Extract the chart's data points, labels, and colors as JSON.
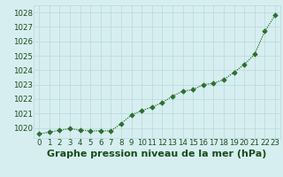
{
  "x": [
    0,
    1,
    2,
    3,
    4,
    5,
    6,
    7,
    8,
    9,
    10,
    11,
    12,
    13,
    14,
    15,
    16,
    17,
    18,
    19,
    20,
    21,
    22,
    23
  ],
  "y": [
    1019.6,
    1019.7,
    1019.85,
    1019.95,
    1019.85,
    1019.8,
    1019.8,
    1019.8,
    1020.3,
    1020.9,
    1021.2,
    1021.45,
    1021.75,
    1022.2,
    1022.55,
    1022.65,
    1023.0,
    1023.1,
    1023.35,
    1023.85,
    1024.4,
    1025.1,
    1026.7,
    1027.8
  ],
  "title": "Graphe pression niveau de la mer (hPa)",
  "ylim_min": 1019.3,
  "ylim_max": 1028.5,
  "yticks": [
    1020,
    1021,
    1022,
    1023,
    1024,
    1025,
    1026,
    1027,
    1028
  ],
  "xticks": [
    0,
    1,
    2,
    3,
    4,
    5,
    6,
    7,
    8,
    9,
    10,
    11,
    12,
    13,
    14,
    15,
    16,
    17,
    18,
    19,
    20,
    21,
    22,
    23
  ],
  "line_color": "#2d6e2d",
  "marker_color": "#2d6e2d",
  "bg_color": "#d6eef0",
  "grid_color": "#b8d8dc",
  "title_color": "#1a4d1a",
  "title_fontsize": 8.0,
  "tick_fontsize": 6.2
}
